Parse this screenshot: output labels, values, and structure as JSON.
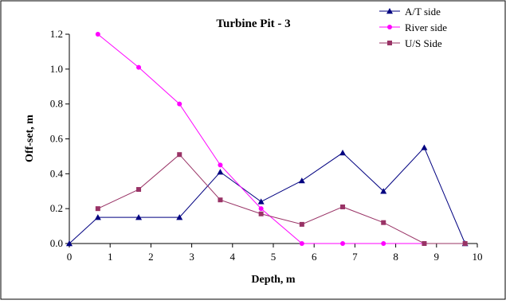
{
  "chart_data": {
    "type": "line",
    "title": "Turbine Pit - 3",
    "xlabel": "Depth, m",
    "ylabel": "Off-set, m",
    "xlim": [
      0,
      10
    ],
    "ylim": [
      0,
      1.2
    ],
    "x_ticks": [
      "0",
      "1",
      "2",
      "3",
      "4",
      "5",
      "6",
      "7",
      "8",
      "9",
      "10"
    ],
    "y_ticks": [
      "0.0",
      "0.2",
      "0.4",
      "0.6",
      "0.8",
      "1.0",
      "1.2"
    ],
    "grid": false,
    "legend_position": "top-right",
    "series": [
      {
        "name": "A/T side",
        "color": "#000080",
        "marker": "triangle",
        "x": [
          0,
          0.7,
          1.7,
          2.7,
          3.7,
          4.7,
          5.7,
          6.7,
          7.7,
          8.7,
          9.7
        ],
        "y": [
          0,
          0.15,
          0.15,
          0.15,
          0.41,
          0.24,
          0.36,
          0.52,
          0.3,
          0.55,
          0.0
        ]
      },
      {
        "name": "River side",
        "color": "#FF00FF",
        "marker": "circle",
        "x": [
          0.7,
          1.7,
          2.7,
          3.7,
          4.7,
          5.7,
          6.7,
          7.7,
          8.7,
          9.7
        ],
        "y": [
          1.2,
          1.01,
          0.8,
          0.45,
          0.2,
          0.0,
          0.0,
          0.0,
          0.0,
          0.0
        ]
      },
      {
        "name": "U/S Side",
        "color": "#993366",
        "marker": "square",
        "x": [
          0.7,
          1.7,
          2.7,
          3.7,
          4.7,
          5.7,
          6.7,
          7.7,
          8.7,
          9.7
        ],
        "y": [
          0.2,
          0.31,
          0.51,
          0.25,
          0.17,
          0.11,
          0.21,
          0.12,
          0.0,
          0.0
        ]
      }
    ]
  }
}
